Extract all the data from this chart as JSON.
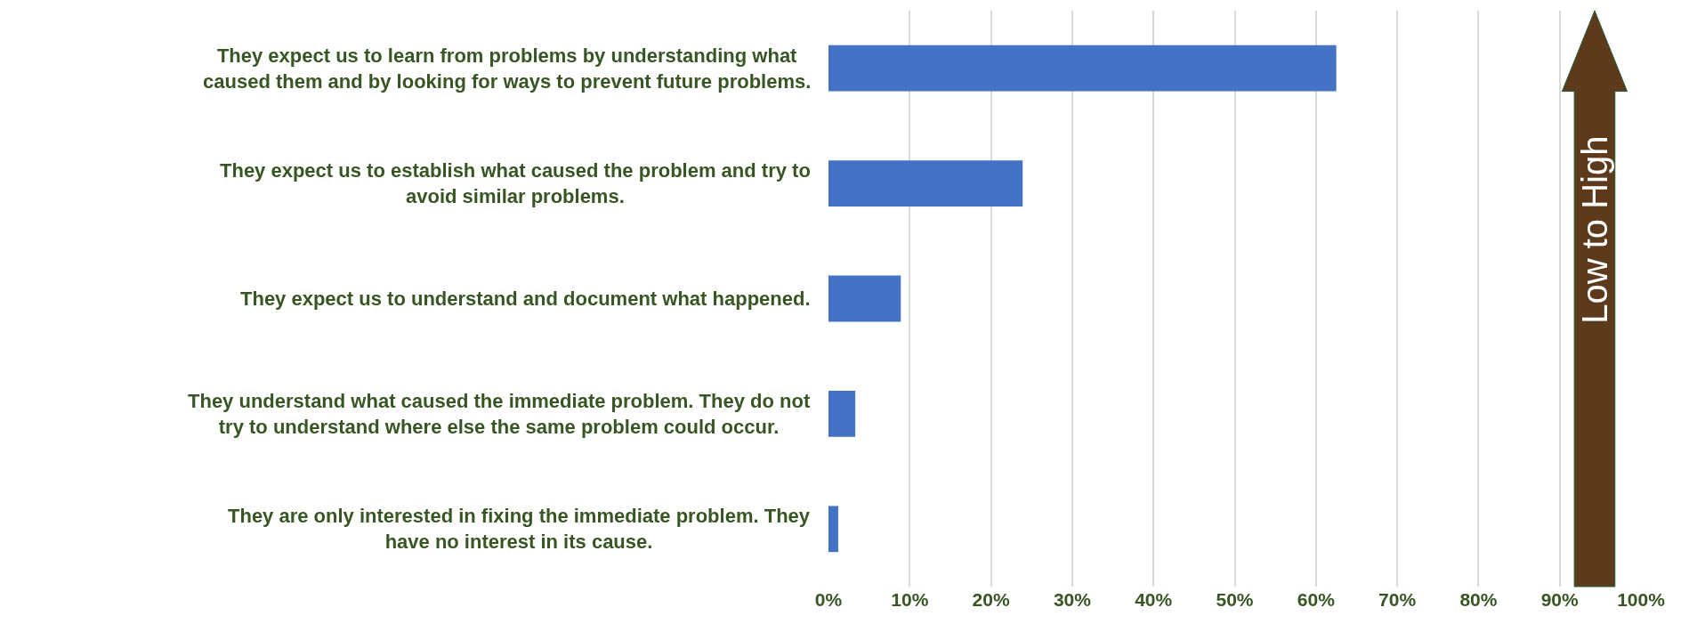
{
  "chart_data": {
    "type": "bar",
    "orientation": "horizontal",
    "categories": [
      "They expect us to learn from problems by understanding what caused them and by looking for ways to prevent future problems.",
      "They expect us to establish what caused the problem and try to avoid similar problems.",
      "They expect us to understand and document what happened.",
      "They understand what caused the immediate problem. They do not try to understand where else the same problem could occur.",
      "They are only interested in fixing the immediate problem. They have no interest in its cause."
    ],
    "values": [
      0.625,
      0.239,
      0.089,
      0.033,
      0.012
    ],
    "color": "#4472c4",
    "xlim": [
      0,
      1
    ],
    "xticks": [
      {
        "value": 0,
        "label": "0%"
      },
      {
        "value": 0.1,
        "label": "10%"
      },
      {
        "value": 0.2,
        "label": "20%"
      },
      {
        "value": 0.3,
        "label": "30%"
      },
      {
        "value": 0.4,
        "label": "40%"
      },
      {
        "value": 0.5,
        "label": "50%"
      },
      {
        "value": 0.6,
        "label": "60%"
      },
      {
        "value": 0.7,
        "label": "70%"
      },
      {
        "value": 0.8,
        "label": "80%"
      },
      {
        "value": 0.9,
        "label": "90%"
      },
      {
        "value": 1,
        "label": "100%"
      }
    ],
    "grid": "x",
    "annotations": [
      "Low to High"
    ]
  }
}
